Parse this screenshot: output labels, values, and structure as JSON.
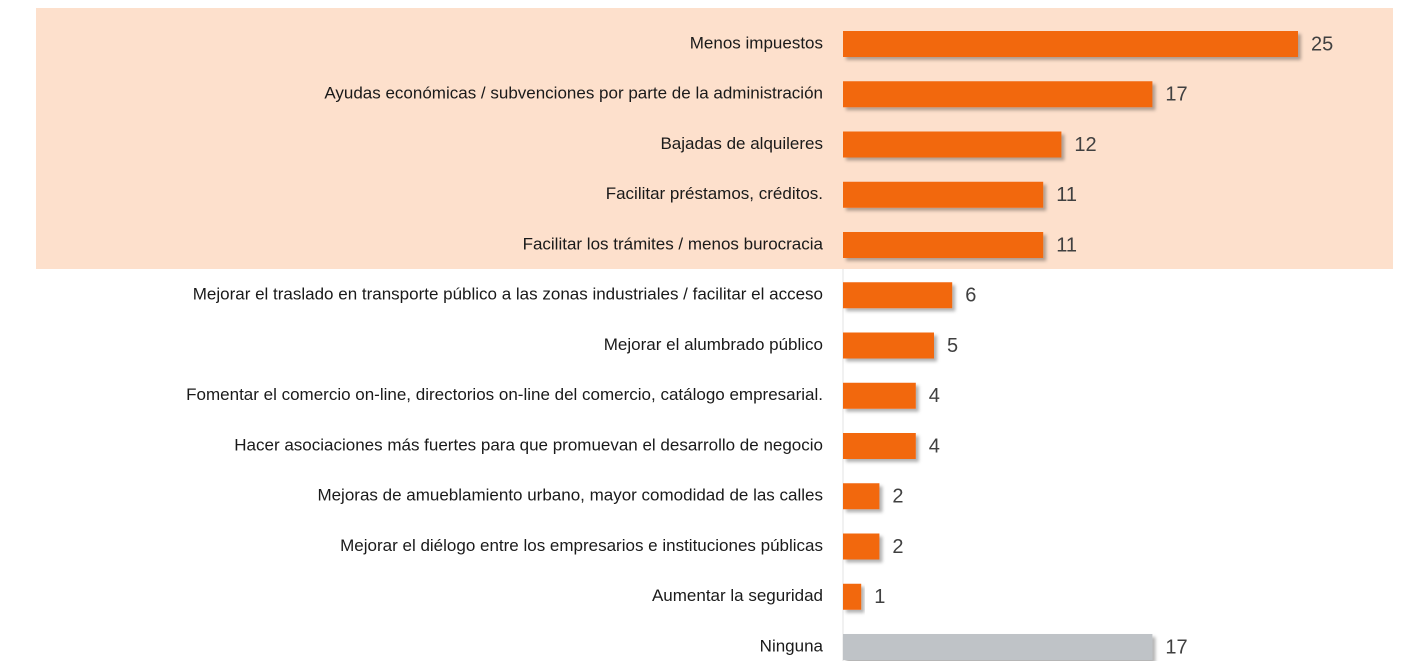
{
  "chart_data": {
    "type": "bar",
    "orientation": "horizontal",
    "categories": [
      "Menos impuestos",
      "Ayudas económicas / subvenciones por parte de la administración",
      "Bajadas de alquileres",
      "Facilitar préstamos, créditos.",
      "Facilitar los trámites / menos burocracia",
      "Mejorar el traslado en transporte público a las zonas industriales / facilitar el acceso",
      "Mejorar el alumbrado público",
      "Fomentar el comercio on-line, directorios on-line del comercio, catálogo empresarial.",
      "Hacer asociaciones más fuertes para que promuevan el desarrollo de negocio",
      "Mejoras de amueblamiento urbano, mayor comodidad de las calles",
      "Mejorar el diélogo entre los empresarios e instituciones públicas",
      "Aumentar la seguridad",
      "Ninguna"
    ],
    "values": [
      25,
      17,
      12,
      11,
      11,
      6,
      5,
      4,
      4,
      2,
      2,
      1,
      17
    ],
    "colors": [
      "#f26711",
      "#f26711",
      "#f26711",
      "#f26711",
      "#f26711",
      "#f26711",
      "#f26711",
      "#f26711",
      "#f26711",
      "#f26711",
      "#f26711",
      "#f26711",
      "#bfc3c7"
    ]
  }
}
